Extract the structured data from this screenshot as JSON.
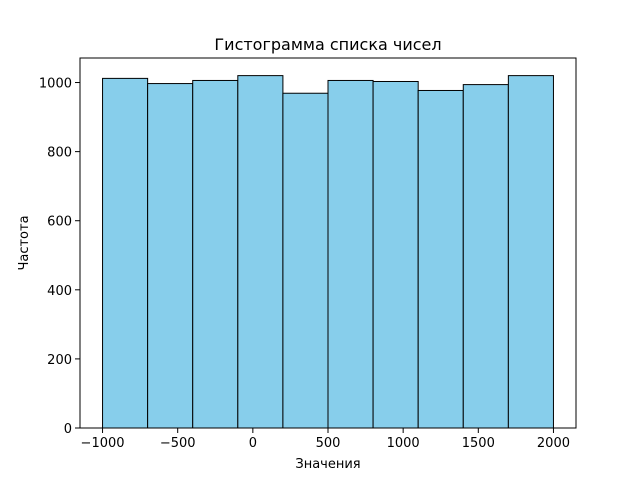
{
  "chart_data": {
    "type": "bar",
    "title": "Гистограмма списка чисел",
    "xlabel": "Значения",
    "ylabel": "Частота",
    "bin_edges": [
      -1000,
      -700,
      -400,
      -100,
      200,
      500,
      800,
      1100,
      1400,
      1700,
      2000
    ],
    "values": [
      1012,
      997,
      1006,
      1020,
      969,
      1006,
      1003,
      977,
      994,
      1020
    ],
    "xlim": [
      -1150,
      2150
    ],
    "ylim": [
      0,
      1071
    ],
    "xticks": [
      -1000,
      -500,
      0,
      500,
      1000,
      1500,
      2000
    ],
    "xtick_labels": [
      "−1000",
      "−500",
      "0",
      "500",
      "1000",
      "1500",
      "2000"
    ],
    "yticks": [
      0,
      200,
      400,
      600,
      800,
      1000
    ],
    "ytick_labels": [
      "0",
      "200",
      "400",
      "600",
      "800",
      "1000"
    ],
    "bar_color": "#87ceeb",
    "edge_color": "#000000",
    "grid": false,
    "legend": "none"
  }
}
